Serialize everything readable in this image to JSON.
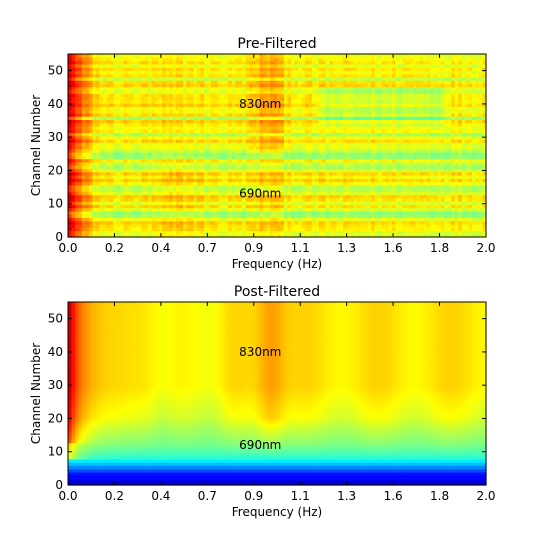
{
  "colors": {
    "colormap": "jet",
    "stops": [
      "#00007f",
      "#0000ff",
      "#007fff",
      "#00ffff",
      "#7fff7f",
      "#ffff00",
      "#ff7f00",
      "#ff0000",
      "#7f0000"
    ]
  },
  "chart_data": [
    {
      "type": "heatmap",
      "title": "Pre-Filtered",
      "xlabel": "Frequency (Hz)",
      "ylabel": "Channel Number",
      "xlim": [
        0.0,
        2.0
      ],
      "ylim": [
        0,
        55
      ],
      "xticks": [
        "0.0",
        "0.2",
        "0.4",
        "0.7",
        "0.9",
        "1.1",
        "1.3",
        "1.6",
        "1.8",
        "2.0"
      ],
      "yticks": [
        "0",
        "10",
        "20",
        "30",
        "40",
        "50"
      ],
      "grid": false,
      "annotations": [
        {
          "text": "830nm",
          "x": 0.92,
          "y": 40
        },
        {
          "text": "690nm",
          "x": 0.92,
          "y": 13
        }
      ]
    },
    {
      "type": "heatmap",
      "title": "Post-Filtered",
      "xlabel": "Frequency (Hz)",
      "ylabel": "Channel Number",
      "xlim": [
        0.0,
        2.0
      ],
      "ylim": [
        0,
        55
      ],
      "xticks": [
        "0.0",
        "0.2",
        "0.4",
        "0.7",
        "0.9",
        "1.1",
        "1.3",
        "1.6",
        "1.8",
        "2.0"
      ],
      "yticks": [
        "0",
        "10",
        "20",
        "30",
        "40",
        "50"
      ],
      "grid": false,
      "annotations": [
        {
          "text": "830nm",
          "x": 0.92,
          "y": 40
        },
        {
          "text": "690nm",
          "x": 0.92,
          "y": 12
        }
      ]
    }
  ]
}
